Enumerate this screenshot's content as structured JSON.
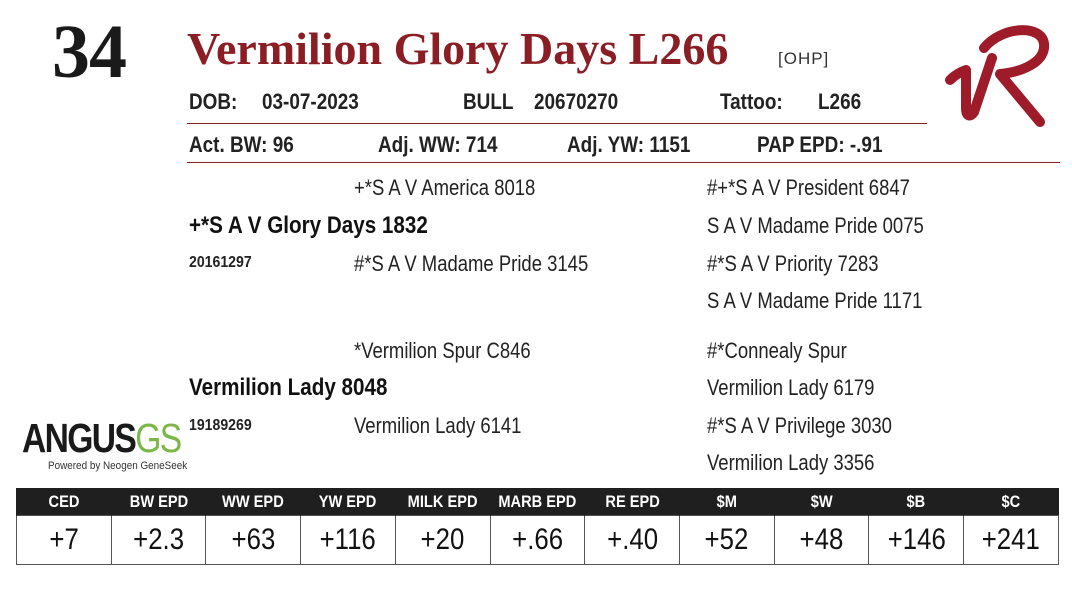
{
  "header": {
    "lot_number": "34",
    "animal_name": "Vermilion Glory Days L266",
    "tag": "[OHP]"
  },
  "id_row": {
    "dob_label": "DOB:",
    "dob_value": "03-07-2023",
    "sex": "BULL",
    "registration": "20670270",
    "tattoo_label": "Tattoo:",
    "tattoo_value": "L266"
  },
  "performance": {
    "act_bw": "Act. BW: 96",
    "adj_ww": "Adj. WW: 714",
    "adj_yw": "Adj. YW: 1151",
    "pap_epd": "PAP EPD: -.91"
  },
  "pedigree": {
    "sire": "+*S A V Glory Days 1832",
    "sire_reg": "20161297",
    "sire_sire": "+*S A V America 8018",
    "sire_dam": "#*S A V Madame Pride 3145",
    "sss": "#+*S A V President 6847",
    "ssd": "S A V Madame Pride 0075",
    "sds": "#*S A V Priority 7283",
    "sdd": "S A V Madame Pride 1171",
    "dam": "Vermilion Lady 8048",
    "dam_reg": "19189269",
    "dam_sire": "*Vermilion Spur C846",
    "dam_dam": "Vermilion Lady 6141",
    "dss": "#*Connealy Spur",
    "dsd": "Vermilion Lady 6179",
    "dds": "#*S A V Privilege 3030",
    "ddd": "Vermilion Lady 3356"
  },
  "logos": {
    "angus_main": "ANGUS",
    "angus_gs": "GS",
    "angus_sub": "Powered by Neogen GeneSeek",
    "ranch_brand": "VR"
  },
  "epd_table": {
    "headers": [
      "CED",
      "BW EPD",
      "WW EPD",
      "YW EPD",
      "MILK EPD",
      "MARB EPD",
      "RE EPD",
      "$M",
      "$W",
      "$B",
      "$C"
    ],
    "values": [
      "+7",
      "+2.3",
      "+63",
      "+116",
      "+20",
      "+.66",
      "+.40",
      "+52",
      "+48",
      "+146",
      "+241"
    ]
  },
  "colors": {
    "accent": "#8b1d24",
    "header_bg": "#1f1f1f",
    "logo_green": "#7ab648"
  }
}
